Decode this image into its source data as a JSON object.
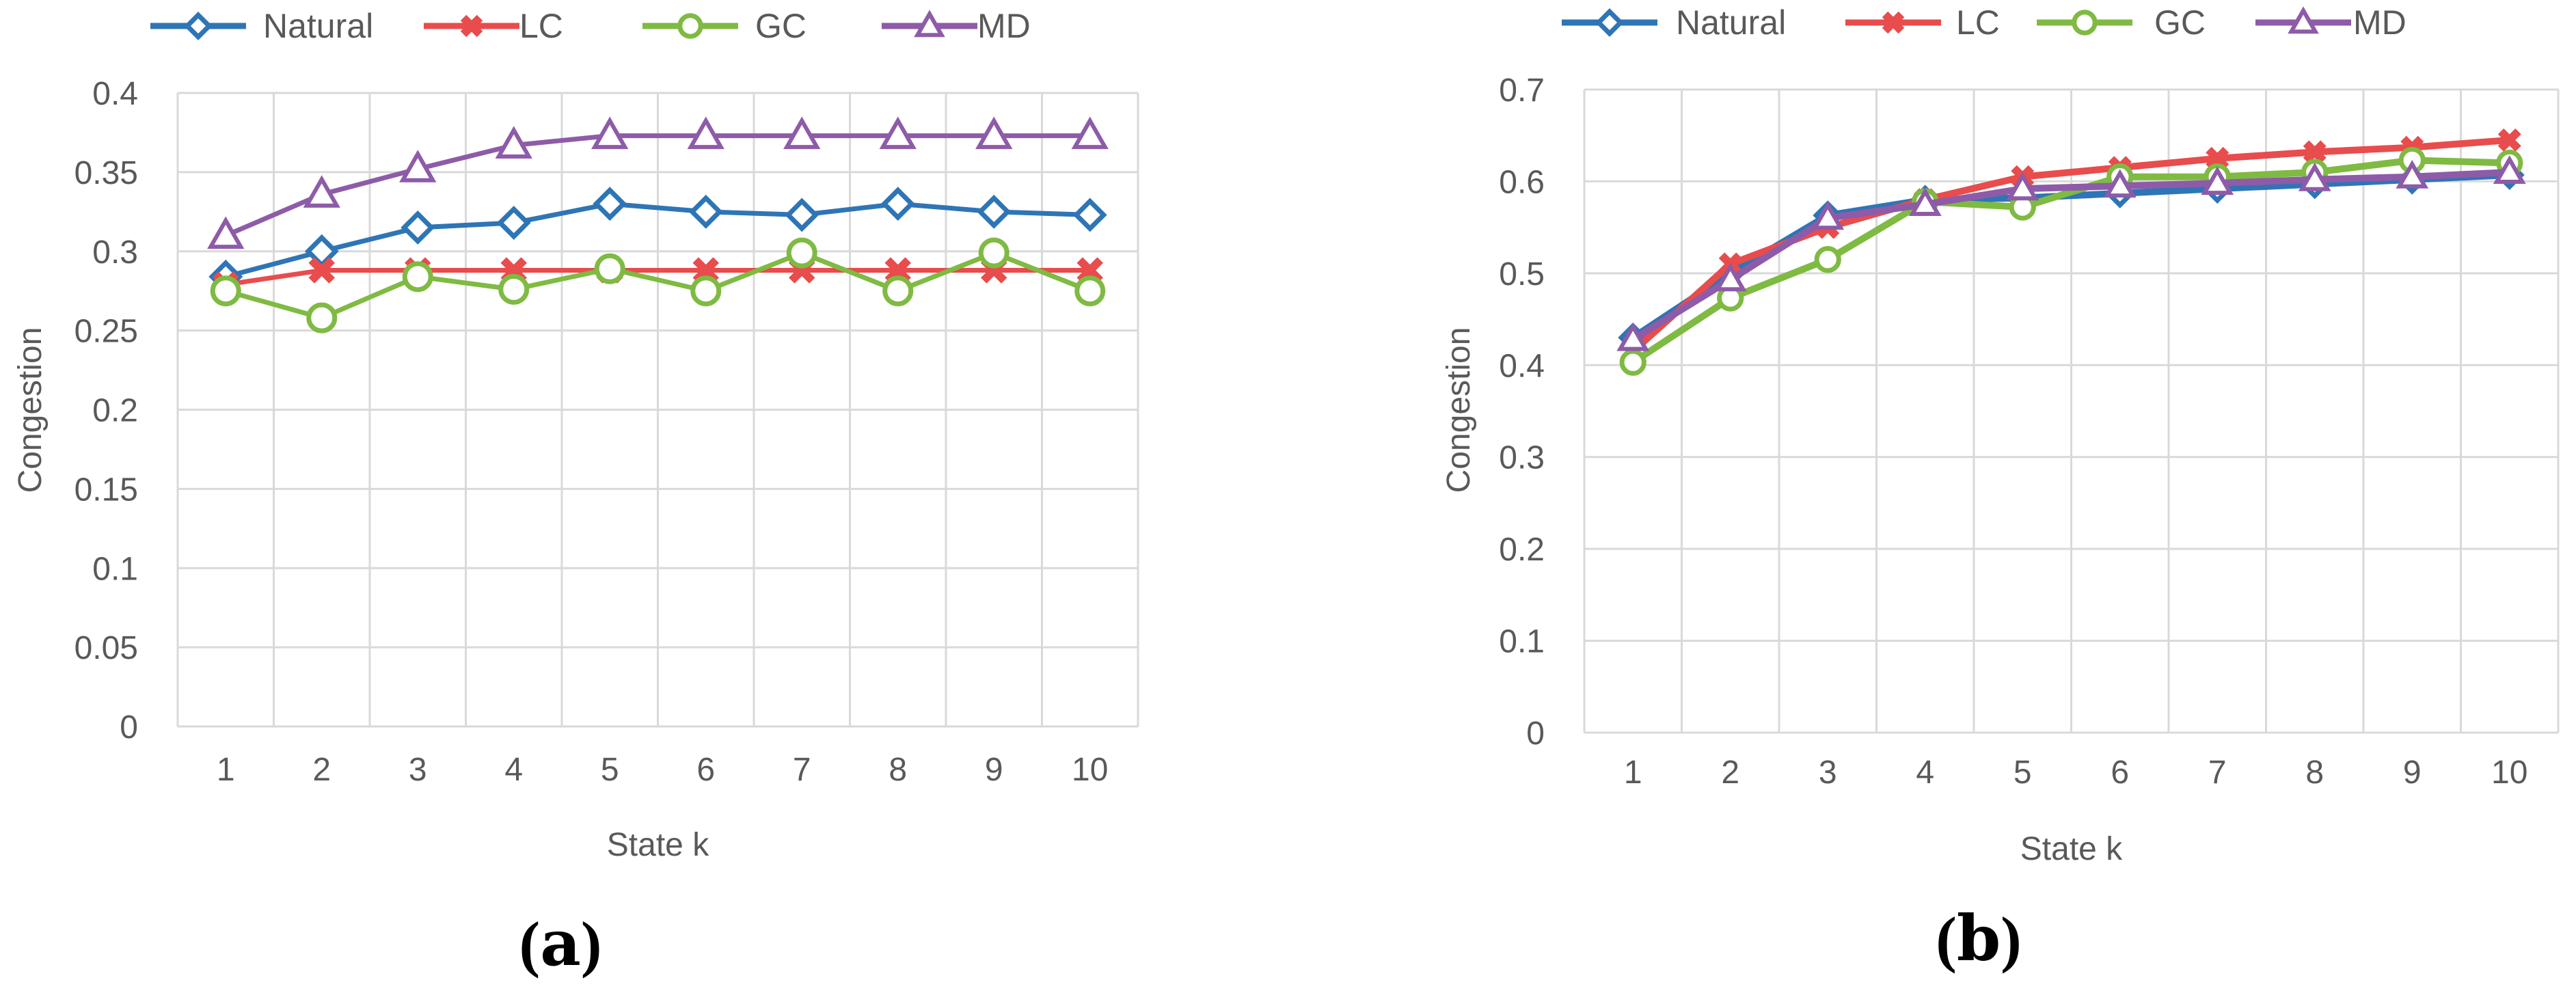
{
  "chart_data": [
    {
      "type": "line",
      "panel_label": "(a)",
      "panel_label_parts": [
        "(",
        "a",
        ")"
      ],
      "xlabel": "State k",
      "ylabel": "Congestion",
      "x": [
        1,
        2,
        3,
        4,
        5,
        6,
        7,
        8,
        9,
        10
      ],
      "ylim": [
        0,
        0.4
      ],
      "yticks": [
        "0",
        "0.05",
        "0.1",
        "0.15",
        "0.2",
        "0.25",
        "0.3",
        "0.35",
        "0.4"
      ],
      "grid": true,
      "legend": "top",
      "series": [
        {
          "name": "Natural",
          "marker": "diamond",
          "values": [
            0.284,
            0.3,
            0.315,
            0.318,
            0.33,
            0.325,
            0.323,
            0.33,
            0.325,
            0.323
          ]
        },
        {
          "name": "LC",
          "marker": "x",
          "values": [
            0.279,
            0.288,
            0.288,
            0.288,
            0.288,
            0.288,
            0.288,
            0.288,
            0.288,
            0.288
          ]
        },
        {
          "name": "GC",
          "marker": "circle",
          "values": [
            0.275,
            0.258,
            0.284,
            0.276,
            0.289,
            0.275,
            0.299,
            0.275,
            0.299,
            0.275
          ]
        },
        {
          "name": "MD",
          "marker": "triangle",
          "values": [
            0.31,
            0.336,
            0.352,
            0.367,
            0.373,
            0.373,
            0.373,
            0.373,
            0.373,
            0.373
          ]
        }
      ]
    },
    {
      "type": "line",
      "panel_label": "(b)",
      "panel_label_parts": [
        "(",
        "b",
        ")"
      ],
      "xlabel": "State k",
      "ylabel": "Congestion",
      "x": [
        1,
        2,
        3,
        4,
        5,
        6,
        7,
        8,
        9,
        10
      ],
      "ylim": [
        0,
        0.7
      ],
      "yticks": [
        "0",
        "0.1",
        "0.2",
        "0.3",
        "0.4",
        "0.5",
        "0.6",
        "0.7"
      ],
      "grid": true,
      "legend": "top",
      "series": [
        {
          "name": "Natural",
          "marker": "diamond",
          "values": [
            0.43,
            0.5,
            0.563,
            0.58,
            0.582,
            0.587,
            0.592,
            0.597,
            0.602,
            0.607
          ]
        },
        {
          "name": "LC",
          "marker": "x",
          "values": [
            0.415,
            0.51,
            0.55,
            0.58,
            0.605,
            0.615,
            0.625,
            0.632,
            0.637,
            0.645
          ]
        },
        {
          "name": "GC",
          "marker": "circle",
          "values": [
            0.403,
            0.473,
            0.515,
            0.578,
            0.572,
            0.605,
            0.605,
            0.61,
            0.623,
            0.62
          ]
        },
        {
          "name": "MD",
          "marker": "triangle",
          "values": [
            0.428,
            0.493,
            0.56,
            0.575,
            0.592,
            0.595,
            0.598,
            0.602,
            0.605,
            0.61
          ]
        }
      ]
    }
  ],
  "colors": {
    "Natural": "#2e75b6",
    "LC": "#e84c4c",
    "GC": "#7fba42",
    "MD": "#8e5ba8",
    "grid": "#d9d9d9",
    "text": "#595959"
  }
}
